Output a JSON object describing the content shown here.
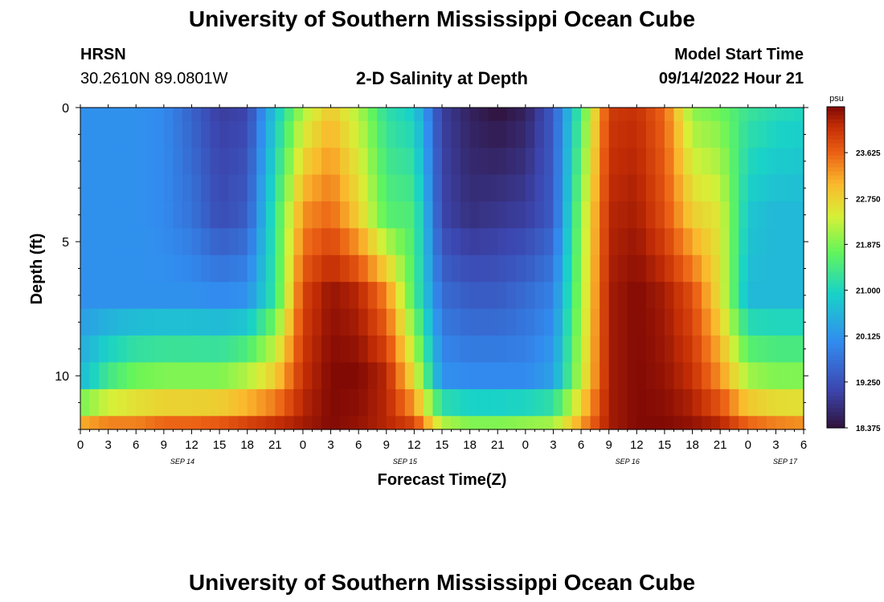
{
  "header": {
    "title": "University of Southern Mississippi Ocean Cube",
    "station": "HRSN",
    "coords": "30.2610N  89.0801W",
    "plot_title": "2-D Salinity at Depth",
    "model_label": "Model Start Time",
    "model_time": "09/14/2022 Hour 21"
  },
  "footer": {
    "title": "University of Southern Mississippi Ocean Cube"
  },
  "chart_data": {
    "type": "heatmap",
    "title": "2-D Salinity at Depth",
    "xlabel": "Forecast Time(Z)",
    "ylabel": "Depth (ft)",
    "x_ticks": [
      "0",
      "3",
      "6",
      "9",
      "12",
      "15",
      "18",
      "21",
      "0",
      "3",
      "6",
      "9",
      "12",
      "15",
      "18",
      "21",
      "0",
      "3",
      "6",
      "9",
      "12",
      "15",
      "18",
      "21",
      "0",
      "3",
      "6"
    ],
    "x_hours": [
      0,
      3,
      6,
      9,
      12,
      15,
      18,
      21,
      24,
      27,
      30,
      33,
      36,
      39,
      42,
      45,
      48,
      51,
      54,
      57,
      60,
      63,
      66,
      69,
      72,
      75,
      78
    ],
    "date_labels": [
      {
        "label": "SEP 14",
        "hour": 11
      },
      {
        "label": "SEP 15",
        "hour": 35
      },
      {
        "label": "SEP 16",
        "hour": 59
      },
      {
        "label": "SEP 17",
        "hour": 76
      }
    ],
    "y_ticks": [
      0,
      5,
      10
    ],
    "ylim": [
      0,
      12
    ],
    "xlim": [
      0,
      78
    ],
    "colorbar": {
      "unit": "psu",
      "min": 18.375,
      "max": 24.5,
      "ticks": [
        "23.625",
        "22.750",
        "21.875",
        "21.000",
        "20.125",
        "19.250",
        "18.375"
      ],
      "tick_values": [
        23.625,
        22.75,
        21.875,
        21.0,
        20.125,
        19.25,
        18.375
      ]
    },
    "depth_levels_ft": [
      0,
      1,
      2,
      3,
      4,
      5,
      6,
      7,
      8,
      9,
      10,
      11,
      12
    ],
    "time_hours": [
      0,
      3,
      6,
      9,
      12,
      15,
      18,
      21,
      24,
      27,
      30,
      33,
      36,
      39,
      42,
      45,
      48,
      51,
      54,
      57,
      60,
      63,
      66,
      69,
      72,
      75,
      78
    ],
    "profiles": {
      "0": [
        20.1,
        20.1,
        20.1,
        20.0,
        19.5,
        19.0,
        19.1,
        20.8,
        22.2,
        22.9,
        22.2,
        21.2,
        20.9,
        19.0,
        18.6,
        18.4,
        18.6,
        19.4,
        21.5,
        24.0,
        24.1,
        23.6,
        22.0,
        21.8,
        21.3,
        21.1,
        21.0
      ],
      "4": [
        20.1,
        20.1,
        20.1,
        20.0,
        19.7,
        19.2,
        19.4,
        21.3,
        23.3,
        23.6,
        22.8,
        21.6,
        21.5,
        19.1,
        18.8,
        18.9,
        19.0,
        19.4,
        22.0,
        24.2,
        24.3,
        23.8,
        22.8,
        22.5,
        20.8,
        20.6,
        20.6
      ],
      "7": [
        20.1,
        20.1,
        20.1,
        20.1,
        20.1,
        20.0,
        20.1,
        21.3,
        23.9,
        24.4,
        24.2,
        23.4,
        21.5,
        19.6,
        19.4,
        19.4,
        19.6,
        19.9,
        22.1,
        24.3,
        24.5,
        24.3,
        23.8,
        22.6,
        20.6,
        20.6,
        20.6
      ],
      "10": [
        20.6,
        21.4,
        21.8,
        21.9,
        21.9,
        21.9,
        22.2,
        22.8,
        24.1,
        24.5,
        24.5,
        24.2,
        22.6,
        20.1,
        20.0,
        20.0,
        20.0,
        20.3,
        22.3,
        24.3,
        24.5,
        24.4,
        24.1,
        23.3,
        22.1,
        21.9,
        21.9
      ],
      "12": [
        23.1,
        23.4,
        23.4,
        23.6,
        23.6,
        23.7,
        23.9,
        24.1,
        24.3,
        24.5,
        24.4,
        24.2,
        23.9,
        22.2,
        21.9,
        21.9,
        22.0,
        22.1,
        23.2,
        24.3,
        24.5,
        24.5,
        24.4,
        24.2,
        23.6,
        23.4,
        23.3
      ]
    }
  }
}
